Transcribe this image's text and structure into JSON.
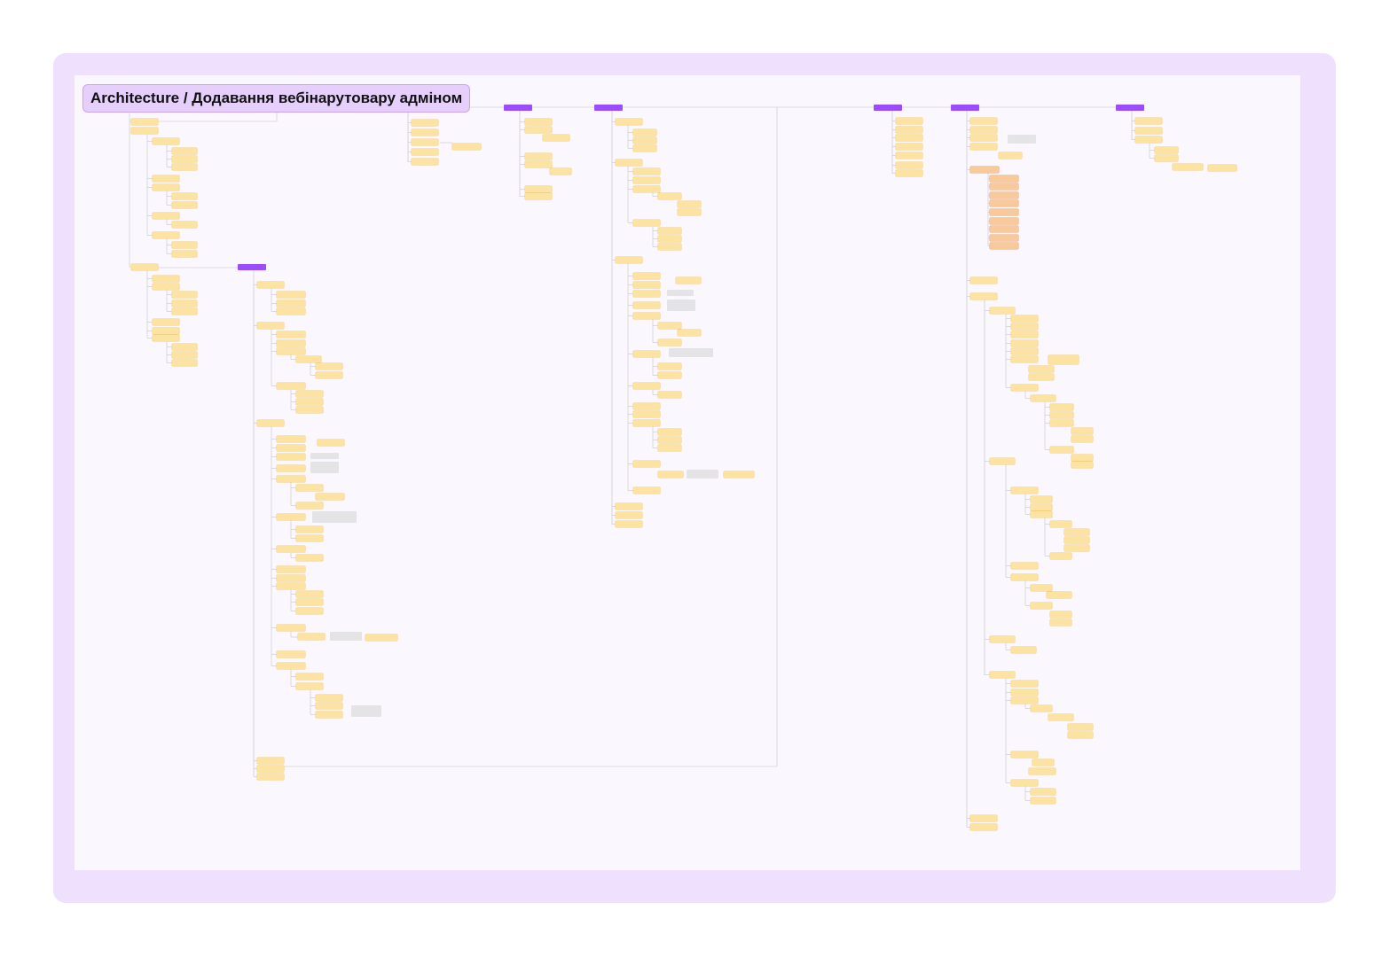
{
  "title": "Architecture / Додавання вебінарутовару адміном",
  "colors": {
    "outer_frame": "#efe1fd",
    "board": "#fbf7fe",
    "title_box": "#e6d0fb",
    "root_node": "#9b4dfc",
    "sticky_node": "#fde3a1",
    "orange_node": "#f8c99a",
    "note_node": "#e4e4e6",
    "connector": "#d2d2d6"
  }
}
